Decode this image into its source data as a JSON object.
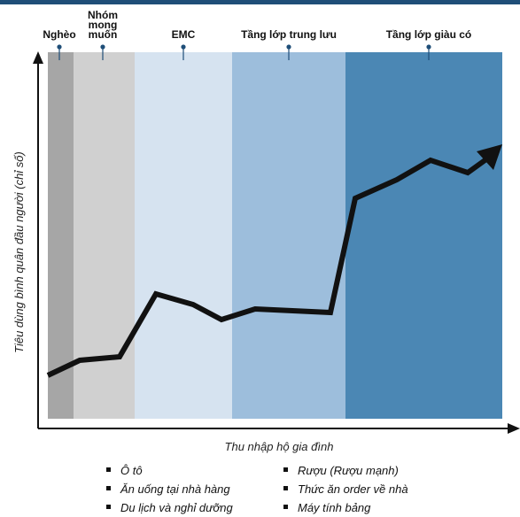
{
  "chart_data": {
    "type": "line",
    "xlabel": "Thu nhập hộ gia đình",
    "ylabel": "Tiêu dùng bình quân đầu người (chỉ số)",
    "segments": [
      {
        "label": "Nghèo",
        "color": "#a6a6a6"
      },
      {
        "label": "Nhóm\nmong\nmuốn",
        "color": "#d0d0d0"
      },
      {
        "label": "EMC",
        "color": "#d6e3f0"
      },
      {
        "label": "Tầng lớp trung lưu",
        "color": "#9dbedc"
      },
      {
        "label": "Tầng lớp giàu có",
        "color": "#4b87b4"
      }
    ],
    "legend": [
      "Ô tô",
      "Ăn uống tại nhà hàng",
      "Du lịch và nghỉ dưỡng",
      "Rượu (Rượu mạnh)",
      "Thức ăn order về nhà",
      "Máy tính bảng"
    ],
    "colors": {
      "line": "#111111",
      "axis": "#111111",
      "marker": "#1f4e78"
    }
  }
}
